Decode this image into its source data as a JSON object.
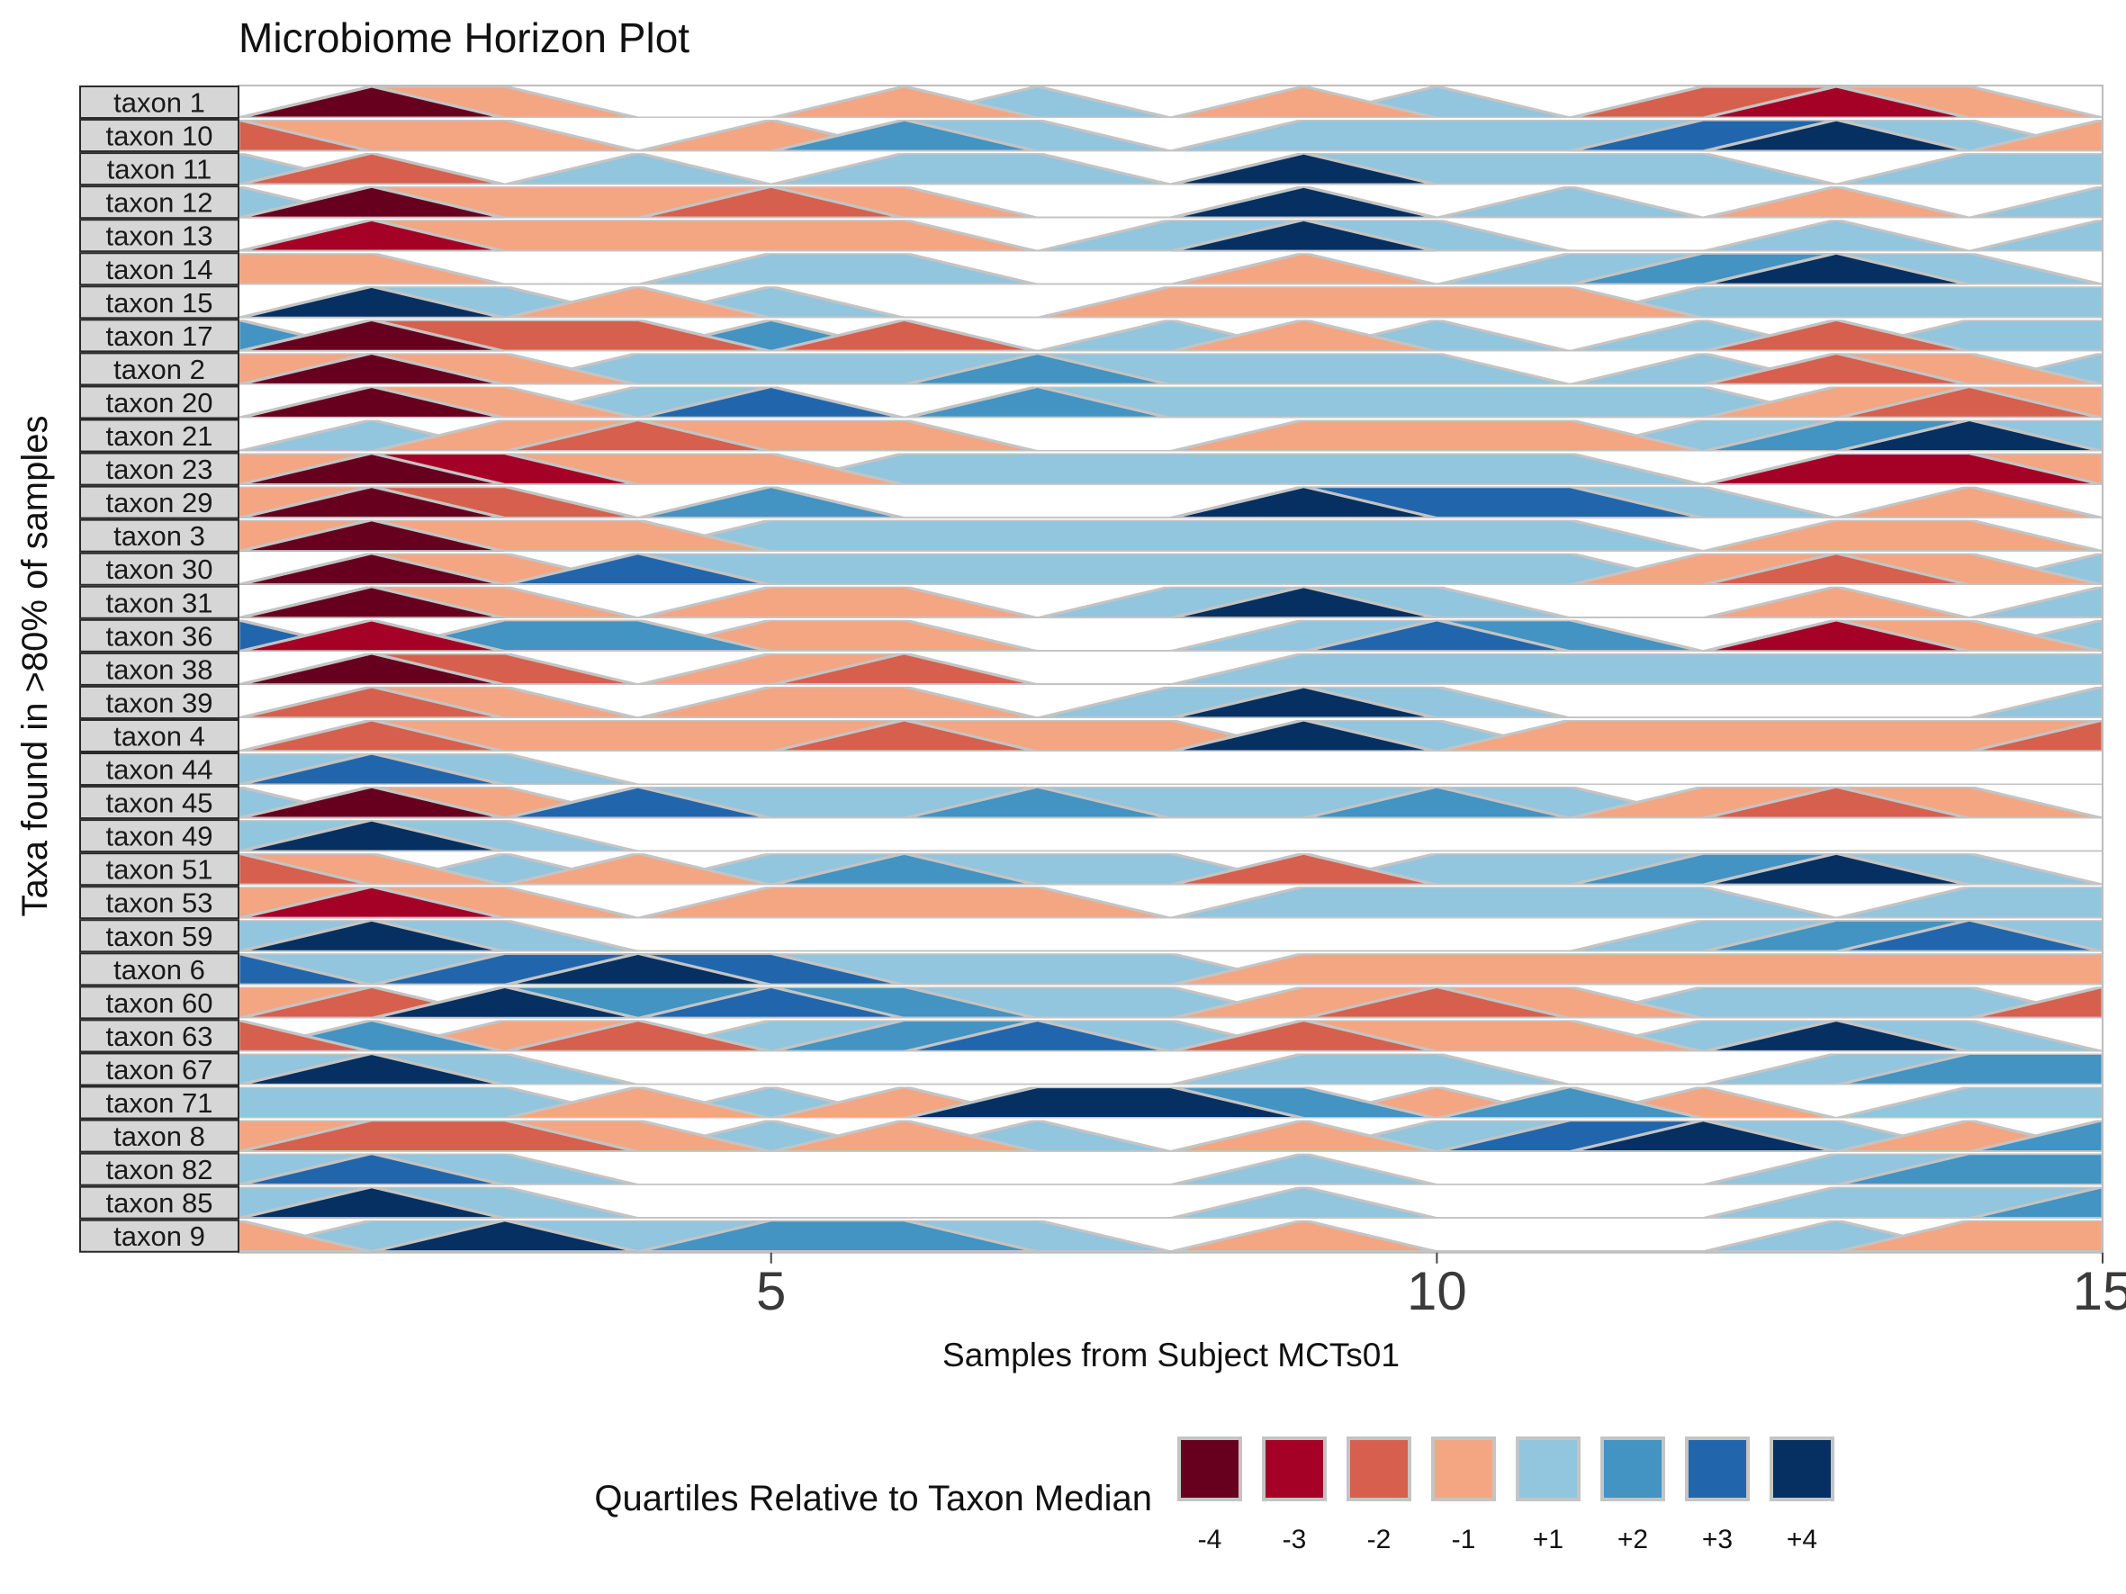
{
  "chart_data": {
    "type": "area",
    "title": "Microbiome Horizon Plot",
    "xlabel": "Samples from Subject MCTs01",
    "ylabel": "Taxa found in >80% of samples",
    "xlim": [
      1,
      15
    ],
    "x_ticks": [
      "5",
      "10",
      "15"
    ],
    "x_tick_values": [
      5,
      10,
      15
    ],
    "x": [
      1,
      2,
      3,
      4,
      5,
      6,
      7,
      8,
      9,
      10,
      11,
      12,
      13,
      14,
      15
    ],
    "grid": false,
    "legend": {
      "title": "Quartiles Relative to Taxon Median",
      "position": "bottom",
      "entries": [
        {
          "label": "-4",
          "color": "#67001F"
        },
        {
          "label": "-3",
          "color": "#A50026"
        },
        {
          "label": "-2",
          "color": "#D6604D"
        },
        {
          "label": "-1",
          "color": "#F4A582"
        },
        {
          "label": "+1",
          "color": "#92C5DE"
        },
        {
          "label": "+2",
          "color": "#4393C3"
        },
        {
          "label": "+3",
          "color": "#2166AC"
        },
        {
          "label": "+4",
          "color": "#053061"
        }
      ]
    },
    "series": [
      {
        "name": "taxon 1",
        "values": [
          0,
          -4,
          -1,
          0,
          0,
          -1,
          1,
          0,
          -1,
          1,
          0,
          -2,
          -3,
          -1,
          0
        ]
      },
      {
        "name": "taxon 10",
        "values": [
          -2,
          -1,
          -1,
          0,
          -1,
          2,
          1,
          0,
          1,
          1,
          1,
          3,
          4,
          1,
          -1
        ]
      },
      {
        "name": "taxon 11",
        "values": [
          1,
          -2,
          0,
          1,
          0,
          1,
          1,
          0,
          4,
          1,
          1,
          1,
          0,
          1,
          1
        ]
      },
      {
        "name": "taxon 12",
        "values": [
          1,
          -4,
          -1,
          -1,
          -2,
          -1,
          0,
          0,
          4,
          0,
          1,
          0,
          -1,
          0,
          1
        ]
      },
      {
        "name": "taxon 13",
        "values": [
          0,
          -3,
          -1,
          -1,
          -1,
          -1,
          0,
          1,
          4,
          1,
          0,
          0,
          1,
          0,
          1
        ]
      },
      {
        "name": "taxon 14",
        "values": [
          -1,
          -1,
          0,
          0,
          1,
          1,
          0,
          0,
          -1,
          0,
          1,
          2,
          4,
          1,
          0
        ]
      },
      {
        "name": "taxon 15",
        "values": [
          0,
          4,
          1,
          -1,
          1,
          0,
          0,
          -1,
          -1,
          -1,
          -1,
          1,
          1,
          1,
          1
        ]
      },
      {
        "name": "taxon 17",
        "values": [
          2,
          -4,
          -2,
          -2,
          2,
          -2,
          0,
          1,
          -1,
          1,
          0,
          1,
          -2,
          1,
          1
        ]
      },
      {
        "name": "taxon 2",
        "values": [
          -1,
          -4,
          -1,
          1,
          1,
          1,
          2,
          1,
          1,
          1,
          0,
          1,
          -2,
          -1,
          1
        ]
      },
      {
        "name": "taxon 20",
        "values": [
          0,
          -4,
          -1,
          1,
          3,
          0,
          2,
          1,
          1,
          1,
          1,
          1,
          -1,
          -2,
          -1
        ]
      },
      {
        "name": "taxon 21",
        "values": [
          0,
          1,
          -1,
          -2,
          -1,
          -1,
          0,
          0,
          -1,
          -1,
          -1,
          1,
          2,
          4,
          1
        ]
      },
      {
        "name": "taxon 23",
        "values": [
          -1,
          -4,
          -3,
          -1,
          -1,
          1,
          1,
          1,
          1,
          1,
          1,
          0,
          -3,
          -3,
          -1
        ]
      },
      {
        "name": "taxon 29",
        "values": [
          -1,
          -4,
          -2,
          0,
          2,
          0,
          0,
          0,
          4,
          3,
          3,
          1,
          0,
          -1,
          0
        ]
      },
      {
        "name": "taxon 3",
        "values": [
          -1,
          -4,
          -1,
          -1,
          1,
          1,
          1,
          1,
          1,
          1,
          1,
          0,
          -1,
          -1,
          0
        ]
      },
      {
        "name": "taxon 30",
        "values": [
          0,
          -4,
          -1,
          3,
          1,
          1,
          1,
          1,
          1,
          1,
          1,
          -1,
          -2,
          -1,
          1
        ]
      },
      {
        "name": "taxon 31",
        "values": [
          0,
          -4,
          -1,
          0,
          -1,
          -1,
          0,
          1,
          4,
          1,
          0,
          0,
          -1,
          0,
          1
        ]
      },
      {
        "name": "taxon 36",
        "values": [
          3,
          -3,
          2,
          2,
          -1,
          -1,
          0,
          0,
          1,
          3,
          2,
          0,
          -3,
          -1,
          1
        ]
      },
      {
        "name": "taxon 38",
        "values": [
          0,
          -4,
          -2,
          0,
          -1,
          -2,
          0,
          0,
          1,
          1,
          1,
          1,
          1,
          1,
          1
        ]
      },
      {
        "name": "taxon 39",
        "values": [
          0,
          -2,
          -1,
          0,
          -1,
          -1,
          0,
          1,
          4,
          1,
          0,
          0,
          0,
          0,
          1
        ]
      },
      {
        "name": "taxon 4",
        "values": [
          0,
          -2,
          -1,
          -1,
          -1,
          -2,
          -1,
          -1,
          4,
          1,
          -1,
          -1,
          -1,
          -1,
          -2
        ]
      },
      {
        "name": "taxon 44",
        "values": [
          1,
          3,
          1,
          0,
          0,
          0,
          0,
          0,
          0,
          0,
          0,
          0,
          0,
          0,
          0
        ]
      },
      {
        "name": "taxon 45",
        "values": [
          1,
          -4,
          -1,
          3,
          1,
          1,
          2,
          1,
          1,
          2,
          1,
          -1,
          -2,
          -1,
          0
        ]
      },
      {
        "name": "taxon 49",
        "values": [
          1,
          4,
          1,
          0,
          0,
          0,
          0,
          0,
          0,
          0,
          0,
          0,
          0,
          0,
          0
        ]
      },
      {
        "name": "taxon 51",
        "values": [
          -2,
          -1,
          1,
          -1,
          1,
          2,
          1,
          1,
          -2,
          1,
          1,
          2,
          4,
          1,
          0
        ]
      },
      {
        "name": "taxon 53",
        "values": [
          -1,
          -3,
          -1,
          0,
          -1,
          -1,
          -1,
          0,
          1,
          1,
          1,
          1,
          0,
          1,
          1
        ]
      },
      {
        "name": "taxon 59",
        "values": [
          1,
          4,
          1,
          0,
          0,
          0,
          0,
          0,
          0,
          0,
          0,
          1,
          2,
          3,
          1
        ]
      },
      {
        "name": "taxon 6",
        "values": [
          3,
          1,
          3,
          4,
          3,
          1,
          1,
          1,
          -1,
          -1,
          -1,
          -1,
          -1,
          -1,
          -1
        ]
      },
      {
        "name": "taxon 60",
        "values": [
          -1,
          -2,
          4,
          2,
          3,
          2,
          1,
          1,
          -1,
          -2,
          -1,
          1,
          1,
          1,
          -2
        ]
      },
      {
        "name": "taxon 63",
        "values": [
          -2,
          2,
          -1,
          -2,
          1,
          2,
          3,
          1,
          -2,
          -1,
          -1,
          1,
          4,
          1,
          0
        ]
      },
      {
        "name": "taxon 67",
        "values": [
          1,
          4,
          1,
          0,
          0,
          0,
          0,
          0,
          1,
          1,
          0,
          0,
          1,
          2,
          2
        ]
      },
      {
        "name": "taxon 71",
        "values": [
          1,
          1,
          1,
          -1,
          1,
          -1,
          4,
          4,
          2,
          -1,
          2,
          -1,
          0,
          1,
          1
        ]
      },
      {
        "name": "taxon 8",
        "values": [
          -1,
          -2,
          -2,
          -1,
          1,
          -1,
          1,
          0,
          -1,
          1,
          3,
          4,
          1,
          -1,
          2
        ]
      },
      {
        "name": "taxon 82",
        "values": [
          1,
          3,
          1,
          0,
          0,
          0,
          0,
          0,
          1,
          0,
          0,
          0,
          1,
          2,
          2
        ]
      },
      {
        "name": "taxon 85",
        "values": [
          1,
          4,
          1,
          0,
          0,
          0,
          0,
          0,
          1,
          0,
          0,
          0,
          1,
          1,
          2
        ]
      },
      {
        "name": "taxon 9",
        "values": [
          -1,
          1,
          4,
          1,
          2,
          2,
          1,
          0,
          -1,
          0,
          0,
          0,
          1,
          -1,
          -1
        ]
      }
    ]
  }
}
